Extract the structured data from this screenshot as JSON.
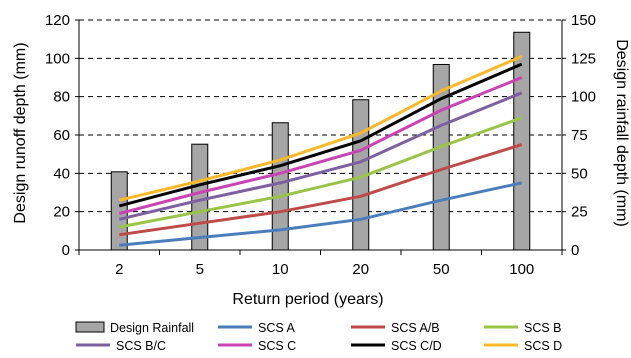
{
  "chart_data": {
    "type": "bar+line",
    "categories": [
      "2",
      "5",
      "10",
      "20",
      "50",
      "100"
    ],
    "xlabel": "Return period (years)",
    "ylabel": "Design runoff depth (mm)",
    "ylabel_right": "Design rainfall depth (mm)",
    "ylim": [
      0,
      120
    ],
    "ylim_right": [
      0,
      150
    ],
    "yticks": [
      "0",
      "20",
      "40",
      "60",
      "80",
      "100",
      "120"
    ],
    "yticks_right": [
      "0",
      "25",
      "50",
      "75",
      "100",
      "125",
      "150"
    ],
    "grid": "horizontal dashed",
    "legend": "bottom",
    "bars": {
      "name": "Design Rainfall",
      "axis": "right",
      "color": "#a6a6a6",
      "values": [
        51,
        69,
        83,
        98,
        121,
        142
      ]
    },
    "series": [
      {
        "name": "SCS A",
        "color": "#4a7ebb",
        "values": [
          2.5,
          6.5,
          10.5,
          16,
          26,
          35
        ]
      },
      {
        "name": "SCS A/B",
        "color": "#be4b48",
        "values": [
          8,
          14,
          20,
          28,
          42,
          55
        ]
      },
      {
        "name": "SCS B",
        "color": "#98c447",
        "values": [
          12,
          20,
          28,
          38,
          54,
          69
        ]
      },
      {
        "name": "SCS B/C",
        "color": "#7d60a0",
        "values": [
          16,
          26,
          35,
          46,
          65,
          82
        ]
      },
      {
        "name": "SCS C",
        "color": "#c943b5",
        "values": [
          19,
          30,
          40,
          52,
          73,
          90
        ]
      },
      {
        "name": "SCS C/D",
        "color": "#000000",
        "values": [
          23,
          34,
          44,
          57,
          79,
          97
        ]
      },
      {
        "name": "SCS D",
        "color": "#fbb829",
        "values": [
          26,
          36,
          47,
          61,
          83,
          101
        ]
      }
    ]
  }
}
